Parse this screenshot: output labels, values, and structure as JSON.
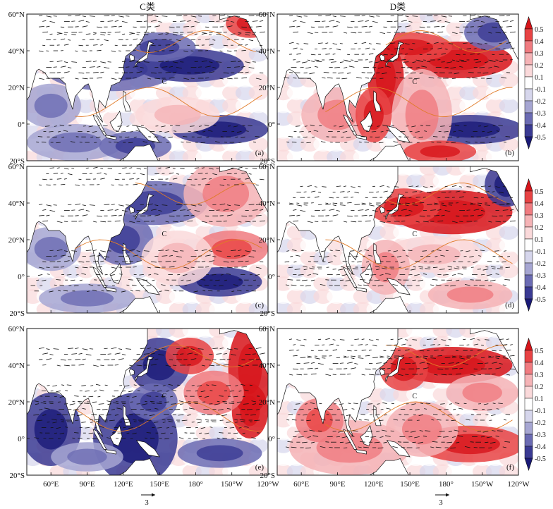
{
  "chart_data": {
    "type": "heatmap",
    "description_fields": "composite SST anomaly maps with wind vectors, two classes in columns, three periods in rows",
    "columns": [
      {
        "title": "C类",
        "panels": [
          "(a)",
          "(c)",
          "(e)"
        ]
      },
      {
        "title": "D类",
        "panels": [
          "(b)",
          "(d)",
          "(f)"
        ]
      }
    ],
    "panels": [
      {
        "id": "(a)",
        "column": "C类",
        "row": 1,
        "pattern": "negative mid-latitude band, negative equatorial east"
      },
      {
        "id": "(b)",
        "column": "D类",
        "row": 1,
        "pattern": "positive mid-latitude band, negative equatorial east"
      },
      {
        "id": "(c)",
        "column": "C类",
        "row": 2,
        "pattern": "negative near Japan, weak positive east"
      },
      {
        "id": "(d)",
        "column": "D类",
        "row": 2,
        "pattern": "strong positive mid-latitude band"
      },
      {
        "id": "(e)",
        "column": "C类",
        "row": 3,
        "pattern": "negative west, positive northeast"
      },
      {
        "id": "(f)",
        "column": "D类",
        "row": 3,
        "pattern": "positive mid-latitude and equatorial"
      }
    ],
    "lat_ticks": [
      "60°N",
      "40°N",
      "20°N",
      "0°",
      "20°S"
    ],
    "lat_values": [
      60,
      40,
      20,
      0,
      -20
    ],
    "lon_ticks": [
      "60°E",
      "90°E",
      "120°E",
      "150°E",
      "180°",
      "150°W",
      "120°W"
    ],
    "lon_values": [
      60,
      90,
      120,
      150,
      180,
      210,
      240
    ],
    "xlim": [
      40,
      240
    ],
    "ylim": [
      -20,
      60
    ],
    "colorbar": {
      "levels": [
        "0.5",
        "0.4",
        "0.3",
        "0.2",
        "0.1",
        "-0.1",
        "-0.2",
        "-0.3",
        "-0.4",
        "-0.5"
      ],
      "level_values": [
        0.5,
        0.4,
        0.3,
        0.2,
        0.1,
        -0.1,
        -0.2,
        -0.3,
        -0.4,
        -0.5
      ],
      "colors": [
        "#d7141a",
        "#e84344",
        "#f07b80",
        "#f5b3b6",
        "#fad9da",
        "#ffffff",
        "#d6d6ec",
        "#a6a6d2",
        "#6b6bb3",
        "#3a3a93",
        "#1a1a78"
      ]
    },
    "vector_reference": "3",
    "contour_marker": "C"
  },
  "colors": {
    "land": "#ffffff",
    "coast": "#111111",
    "contour": "#e07b28",
    "vector": "#111111"
  }
}
